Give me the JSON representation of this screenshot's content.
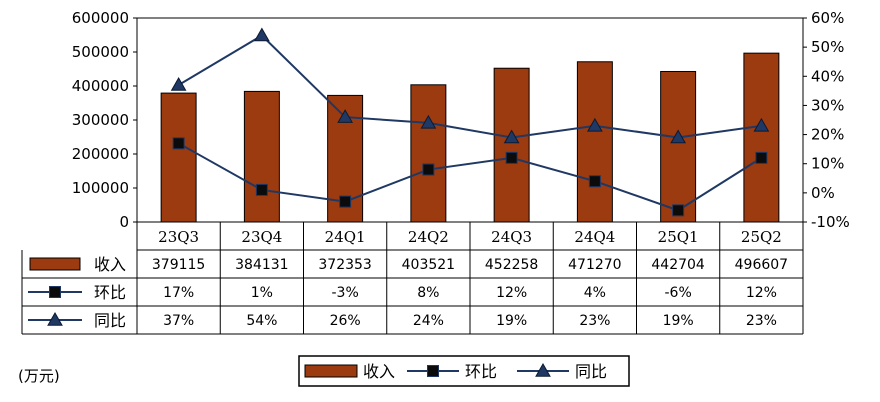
{
  "chart_data": {
    "type": "bar",
    "categories": [
      "23Q3",
      "23Q4",
      "24Q1",
      "24Q2",
      "24Q3",
      "24Q4",
      "25Q1",
      "25Q2"
    ],
    "series": [
      {
        "name": "收入",
        "kind": "bar",
        "axis": "left",
        "color": "#9c3a10",
        "values": [
          379115,
          384131,
          372353,
          403521,
          452258,
          471270,
          442704,
          496607
        ]
      },
      {
        "name": "环比",
        "kind": "line",
        "axis": "right",
        "marker": "square",
        "color": "#1f3864",
        "values": [
          17,
          1,
          -3,
          8,
          12,
          4,
          -6,
          12
        ]
      },
      {
        "name": "同比",
        "kind": "line",
        "axis": "right",
        "marker": "triangle",
        "color": "#1f3864",
        "values": [
          37,
          54,
          26,
          24,
          19,
          23,
          19,
          23
        ]
      }
    ],
    "ylim_left": [
      0,
      600000
    ],
    "yticks_left": [
      "0",
      "100000",
      "200000",
      "300000",
      "400000",
      "500000",
      "600000"
    ],
    "ylim_right": [
      -10,
      60
    ],
    "yticks_right": [
      "-10%",
      "0%",
      "10%",
      "20%",
      "30%",
      "40%",
      "50%",
      "60%"
    ],
    "table": {
      "rows": [
        {
          "label": "收入",
          "cells": [
            "379115",
            "384131",
            "372353",
            "403521",
            "452258",
            "471270",
            "442704",
            "496607"
          ]
        },
        {
          "label": "环比",
          "cells": [
            "17%",
            "1%",
            "-3%",
            "8%",
            "12%",
            "4%",
            "-6%",
            "12%"
          ]
        },
        {
          "label": "同比",
          "cells": [
            "37%",
            "54%",
            "26%",
            "24%",
            "19%",
            "23%",
            "19%",
            "23%"
          ]
        }
      ]
    },
    "legend": {
      "position": "bottom",
      "items": [
        "收入",
        "环比",
        "同比"
      ]
    },
    "unit_label": "(万元)",
    "grid": false
  }
}
